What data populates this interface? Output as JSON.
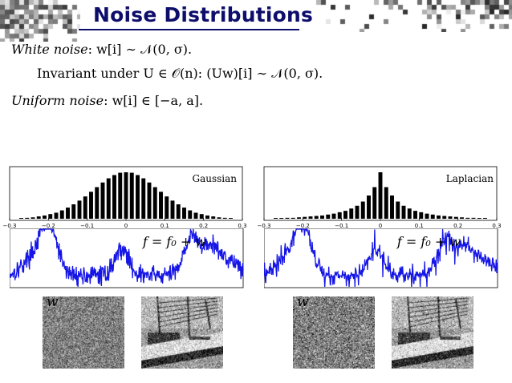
{
  "slide": {
    "title": "Noise Distributions",
    "white_noise_label": "White noise",
    "white_noise_math": ": w[i] ∼ 𝒩(0, σ).",
    "invariant_text": "Invariant under U ∈ 𝒪(n): (Uw)[i] ∼ 𝒩(0, σ).",
    "uniform_noise_label": "Uniform noise",
    "uniform_noise_math": ": w[i] ∈ [−a, a]."
  },
  "panels": [
    {
      "distribution_label": "Gaussian",
      "signal_label": "f = f₀ + w",
      "noise_label": "w"
    },
    {
      "distribution_label": "Laplacian",
      "signal_label": "f = f₀ + w",
      "noise_label": "w"
    }
  ],
  "chart_data": [
    {
      "type": "bar",
      "label": "Gaussian",
      "xlim": [
        -0.3,
        0.3
      ],
      "xticks": [
        "−0.3",
        "−0.2",
        "−0.1",
        "0",
        "0.1",
        "0.2",
        "0.3"
      ],
      "x": [
        -0.27,
        -0.255,
        -0.24,
        -0.225,
        -0.21,
        -0.195,
        -0.18,
        -0.165,
        -0.15,
        -0.135,
        -0.12,
        -0.105,
        -0.09,
        -0.075,
        -0.06,
        -0.045,
        -0.03,
        -0.015,
        0,
        0.015,
        0.03,
        0.045,
        0.06,
        0.075,
        0.09,
        0.105,
        0.12,
        0.135,
        0.15,
        0.165,
        0.18,
        0.195,
        0.21,
        0.225,
        0.24,
        0.255,
        0.27
      ],
      "values": [
        0.01,
        0.02,
        0.03,
        0.05,
        0.07,
        0.1,
        0.13,
        0.18,
        0.24,
        0.31,
        0.39,
        0.48,
        0.58,
        0.68,
        0.78,
        0.87,
        0.94,
        0.99,
        1.0,
        0.99,
        0.94,
        0.87,
        0.78,
        0.68,
        0.58,
        0.48,
        0.39,
        0.31,
        0.24,
        0.18,
        0.13,
        0.1,
        0.07,
        0.05,
        0.03,
        0.02,
        0.01
      ]
    },
    {
      "type": "bar",
      "label": "Laplacian",
      "xlim": [
        -0.3,
        0.3
      ],
      "xticks": [
        "−0.3",
        "−0.2",
        "−0.1",
        "0",
        "0.1",
        "0.2",
        "0.3"
      ],
      "x": [
        -0.27,
        -0.255,
        -0.24,
        -0.225,
        -0.21,
        -0.195,
        -0.18,
        -0.165,
        -0.15,
        -0.135,
        -0.12,
        -0.105,
        -0.09,
        -0.075,
        -0.06,
        -0.045,
        -0.03,
        -0.015,
        0,
        0.015,
        0.03,
        0.045,
        0.06,
        0.075,
        0.09,
        0.105,
        0.12,
        0.135,
        0.15,
        0.165,
        0.18,
        0.195,
        0.21,
        0.225,
        0.24,
        0.255,
        0.27
      ],
      "values": [
        0.01,
        0.01,
        0.02,
        0.02,
        0.03,
        0.04,
        0.05,
        0.06,
        0.07,
        0.09,
        0.11,
        0.14,
        0.17,
        0.22,
        0.28,
        0.37,
        0.5,
        0.68,
        1.0,
        0.68,
        0.5,
        0.37,
        0.28,
        0.22,
        0.17,
        0.14,
        0.11,
        0.09,
        0.07,
        0.06,
        0.05,
        0.04,
        0.03,
        0.02,
        0.02,
        0.01,
        0.01
      ]
    }
  ],
  "colors": {
    "title": "#0d0d6b",
    "signal": "#1515e6",
    "bars": "#000000"
  }
}
